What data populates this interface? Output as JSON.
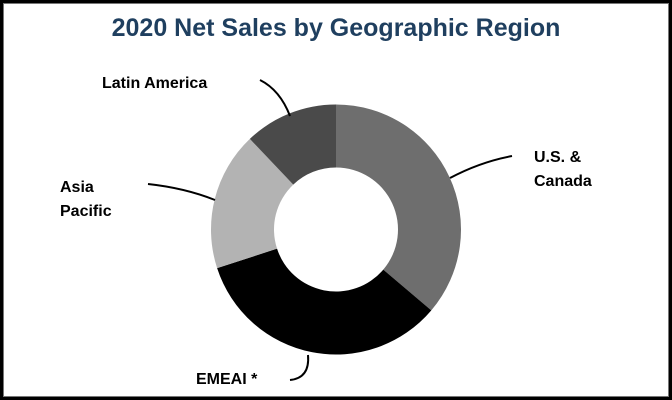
{
  "chart_data": {
    "type": "pie",
    "variant": "donut",
    "title": "2020 Net Sales by Geographic Region",
    "categories": [
      "U.S. & Canada",
      "EMEAI *",
      "Asia Pacific",
      "Latin America"
    ],
    "values": [
      36.2,
      33.8,
      17.9,
      12.1
    ],
    "unit": "% (estimated from slice angles; no data labels shown)",
    "colors": [
      "#6e6e6e",
      "#000000",
      "#b3b3b3",
      "#4a4a4a"
    ],
    "start_angle_deg": 0,
    "direction": "clockwise",
    "legend": "none (leader-line labels)"
  },
  "title": "2020 Net Sales by Geographic Region",
  "labels": {
    "us_line1": "U.S. &",
    "us_line2": "Canada",
    "emeai": "EMEAI *",
    "asia_line1": "Asia",
    "asia_line2": "Pacific",
    "latin": "Latin America"
  },
  "colors": {
    "title": "#1f3f5f"
  }
}
